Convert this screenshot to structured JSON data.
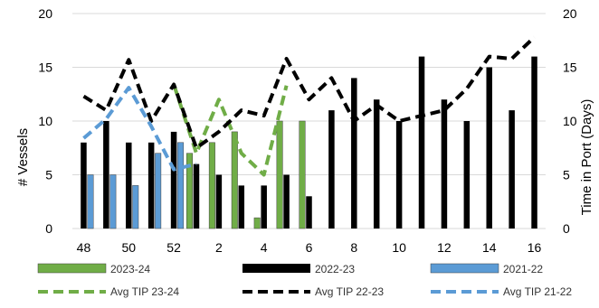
{
  "chart_data": {
    "type": "bar+line",
    "categories": [
      "48",
      "49",
      "50",
      "51",
      "52",
      "1",
      "2",
      "3",
      "4",
      "5",
      "6",
      "7",
      "8",
      "9",
      "10",
      "11",
      "12",
      "13",
      "14",
      "15",
      "16"
    ],
    "x_tick_labels": [
      "48",
      "50",
      "52",
      "2",
      "4",
      "6",
      "8",
      "10",
      "12",
      "14",
      "16"
    ],
    "ylabel": "# Vessels",
    "y2label": "Time in Port (Days)",
    "ylim": [
      0,
      20
    ],
    "y2lim": [
      0,
      20
    ],
    "y_ticks": [
      "0",
      "5",
      "10",
      "15",
      "20"
    ],
    "y2_ticks": [
      "0",
      "5",
      "10",
      "15",
      "20"
    ],
    "grid": "horizontal",
    "legend_placement": "bottom",
    "bar_series": [
      {
        "name": "2023-24",
        "color": "#70ad47",
        "values": [
          null,
          null,
          null,
          null,
          null,
          7,
          8,
          9,
          1,
          10,
          10,
          null,
          null,
          null,
          null,
          null,
          null,
          null,
          null,
          null,
          null
        ]
      },
      {
        "name": "2022-23",
        "color": "#000000",
        "values": [
          8,
          10,
          8,
          8,
          9,
          6,
          5,
          4,
          4,
          5,
          3,
          11,
          14,
          12,
          10,
          16,
          12,
          10,
          15,
          11,
          16
        ]
      },
      {
        "name": "2021-22",
        "color": "#5b9bd5",
        "values": [
          5,
          5,
          4,
          7,
          8,
          null,
          null,
          null,
          null,
          null,
          null,
          null,
          null,
          null,
          null,
          null,
          null,
          null,
          null,
          null,
          null
        ]
      }
    ],
    "line_series": [
      {
        "name": "Avg TIP 23-24",
        "color": "#70ad47",
        "values": [
          null,
          null,
          null,
          null,
          13.4,
          7,
          12,
          7,
          5,
          13.3,
          null,
          null,
          null,
          null,
          null,
          null,
          null,
          null,
          null,
          null,
          null
        ]
      },
      {
        "name": "Avg TIP 22-23",
        "color": "#000000",
        "values": [
          12.3,
          11,
          15.7,
          10,
          13.4,
          7.5,
          9,
          11,
          10.5,
          15.8,
          12,
          14,
          10,
          11.5,
          10,
          10.5,
          11,
          13,
          16,
          15.8,
          17.8
        ]
      },
      {
        "name": "Avg TIP 21-22",
        "color": "#5b9bd5",
        "values": [
          8.4,
          10.2,
          13.1,
          9.5,
          5.5,
          6,
          null,
          null,
          null,
          null,
          null,
          null,
          null,
          null,
          null,
          null,
          null,
          null,
          null,
          null,
          null
        ]
      }
    ]
  }
}
